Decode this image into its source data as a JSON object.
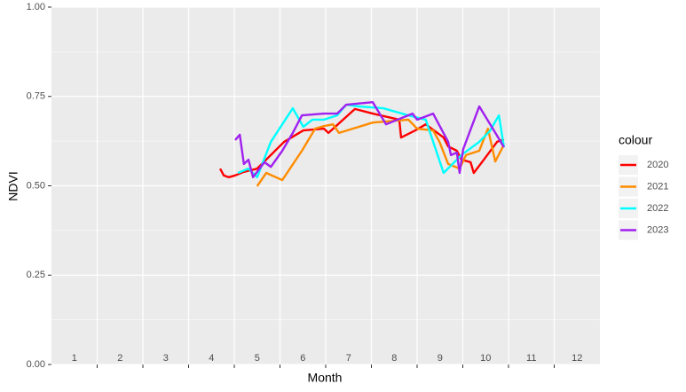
{
  "chart_data": {
    "type": "line",
    "x_label": "Month",
    "y_label": "NDVI",
    "legend_title": "colour",
    "xlim": [
      0.5,
      12.5
    ],
    "xticks": [
      1,
      2,
      3,
      4,
      5,
      6,
      7,
      8,
      9,
      10,
      11,
      12
    ],
    "ylim": [
      0,
      1
    ],
    "yticks": [
      {
        "value": 0,
        "label": "0.00"
      },
      0.25,
      {
        "value": 0.5,
        "label": "0.50"
      },
      0.75,
      {
        "value": 1,
        "label": "1.00"
      }
    ],
    "grid": true,
    "legend_position": "right",
    "series": [
      {
        "name": "2020",
        "color": "#ff0000",
        "x": [
          4.19,
          4.27,
          4.38,
          4.52,
          4.71,
          5.0,
          5.59,
          6.01,
          6.46,
          6.56,
          7.14,
          7.53,
          8.11,
          8.15,
          8.46,
          8.69,
          9.08,
          9.18,
          9.37,
          9.47,
          9.67,
          9.74,
          9.96,
          10.25,
          10.4
        ],
        "values": [
          0.548,
          0.529,
          0.524,
          0.529,
          0.539,
          0.548,
          0.623,
          0.655,
          0.66,
          0.648,
          0.715,
          0.702,
          0.685,
          0.635,
          0.655,
          0.672,
          0.635,
          0.61,
          0.598,
          0.573,
          0.566,
          0.536,
          0.573,
          0.623,
          0.63
        ]
      },
      {
        "name": "2021",
        "color": "#ff8c00",
        "x": [
          5.0,
          5.2,
          5.55,
          5.98,
          6.27,
          6.46,
          6.66,
          6.79,
          7.53,
          8.31,
          8.5,
          8.85,
          8.99,
          9.18,
          9.43,
          9.57,
          9.86,
          10.05,
          10.21,
          10.4
        ],
        "values": [
          0.499,
          0.536,
          0.516,
          0.598,
          0.66,
          0.667,
          0.672,
          0.648,
          0.677,
          0.685,
          0.66,
          0.655,
          0.623,
          0.561,
          0.548,
          0.586,
          0.598,
          0.66,
          0.568,
          0.615
        ]
      },
      {
        "name": "2022",
        "color": "#00ffff",
        "x": [
          4.58,
          4.81,
          5.0,
          5.3,
          5.55,
          5.78,
          6.01,
          6.21,
          6.46,
          6.75,
          6.95,
          7.24,
          7.76,
          8.31,
          8.69,
          9.08,
          9.47,
          9.86,
          10.09,
          10.29,
          10.4
        ],
        "values": [
          0.536,
          0.548,
          0.524,
          0.623,
          0.672,
          0.717,
          0.665,
          0.685,
          0.685,
          0.697,
          0.727,
          0.722,
          0.717,
          0.697,
          0.685,
          0.536,
          0.586,
          0.623,
          0.653,
          0.697,
          0.608
        ]
      },
      {
        "name": "2023",
        "color": "#a020f0",
        "x": [
          4.52,
          4.62,
          4.71,
          4.81,
          4.91,
          5.16,
          5.3,
          5.55,
          5.78,
          5.98,
          6.46,
          6.75,
          6.95,
          7.53,
          7.82,
          8.4,
          8.5,
          8.85,
          9.18,
          9.24,
          9.37,
          9.43,
          9.51,
          9.86,
          10.19,
          10.4
        ],
        "values": [
          0.628,
          0.643,
          0.561,
          0.573,
          0.524,
          0.566,
          0.553,
          0.598,
          0.648,
          0.697,
          0.702,
          0.702,
          0.727,
          0.734,
          0.672,
          0.702,
          0.685,
          0.702,
          0.623,
          0.586,
          0.593,
          0.536,
          0.603,
          0.722,
          0.653,
          0.608
        ]
      }
    ]
  }
}
